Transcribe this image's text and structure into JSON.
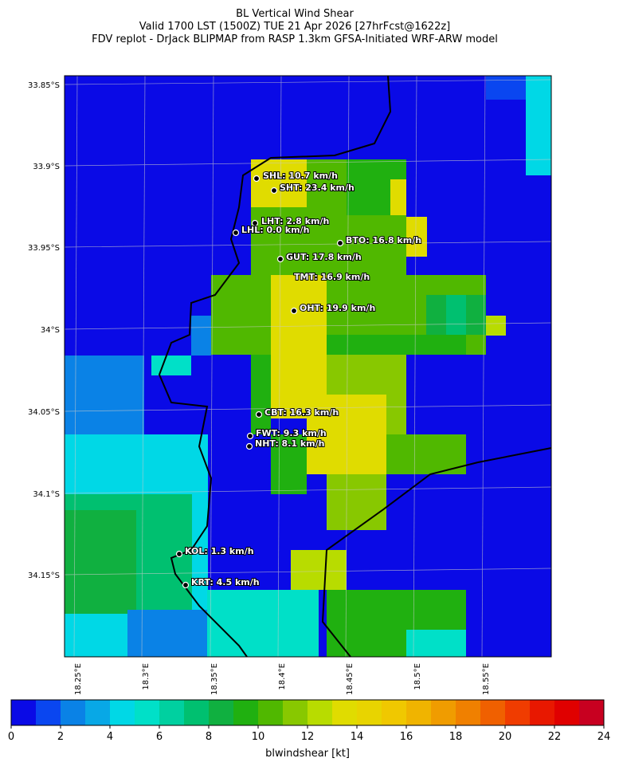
{
  "header": {
    "title": "BL Vertical Wind Shear",
    "subtitle": "Valid 1700 LST (1500Z) TUE 21 Apr 2026 [27hrFcst@1622z]",
    "source": "FDV replot - DrJack BLIPMAP from RASP 1.3km GFSA-Initiated WRF-ARW model"
  },
  "map": {
    "lat_labels": [
      "33.85°S",
      "33.9°S",
      "33.95°S",
      "34°S",
      "34.05°S",
      "34.1°S",
      "34.15°S"
    ],
    "lon_labels": [
      "18.25°E",
      "18.3°E",
      "18.35°E",
      "18.4°E",
      "18.45°E",
      "18.5°E",
      "18.55°E"
    ],
    "stations": [
      {
        "label": "SHL: 10.7 km/h"
      },
      {
        "label": "SHT: 23.4 km/h"
      },
      {
        "label": "LHT: 2.8 km/h"
      },
      {
        "label": "LHL: 0.0 km/h"
      },
      {
        "label": "BTO: 16.8 km/h"
      },
      {
        "label": "GUT: 17.8 km/h"
      },
      {
        "label": "TMT: 16.9 km/h"
      },
      {
        "label": "OHT: 19.9 km/h"
      },
      {
        "label": "CBT: 16.3 km/h"
      },
      {
        "label": "FWT: 9.3 km/h"
      },
      {
        "label": "NHT: 8.1 km/h"
      },
      {
        "label": "KOL: 1.3 km/h"
      },
      {
        "label": "KRT: 4.5 km/h"
      }
    ]
  },
  "colorbar": {
    "label": "blwindshear [kt]",
    "lim": [
      0,
      24
    ],
    "ticks": [
      0,
      2,
      4,
      6,
      8,
      10,
      12,
      14,
      16,
      18,
      20,
      22,
      24
    ],
    "colors": [
      "#0a0ae6",
      "#0a46f0",
      "#0a82e6",
      "#08a8e6",
      "#00d8e6",
      "#00e0c8",
      "#00d0a0",
      "#00c070",
      "#10b040",
      "#20b010",
      "#50b800",
      "#88c800",
      "#b8dc00",
      "#e0dc00",
      "#e8d400",
      "#f0c800",
      "#f0b400",
      "#f09c00",
      "#f08000",
      "#f06000",
      "#f03c00",
      "#e81800",
      "#e00000",
      "#c80020"
    ]
  }
}
